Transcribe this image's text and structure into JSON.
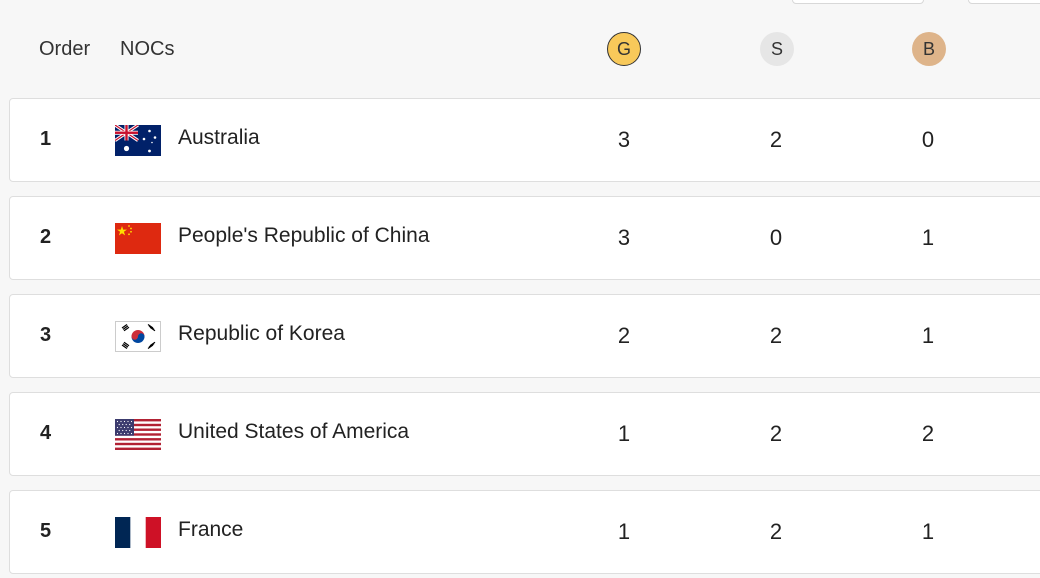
{
  "header": {
    "order_label": "Order",
    "nocs_label": "NOCs",
    "gold_label": "G",
    "silver_label": "S",
    "bronze_label": "B"
  },
  "colors": {
    "gold": "#f8c95a",
    "silver": "#e6e6e6",
    "bronze": "#deb48a"
  },
  "rows": [
    {
      "order": "1",
      "country": "Australia",
      "flag": "australia-flag-icon",
      "gold": "3",
      "silver": "2",
      "bronze": "0"
    },
    {
      "order": "2",
      "country": "People's Republic of China",
      "flag": "china-flag-icon",
      "gold": "3",
      "silver": "0",
      "bronze": "1"
    },
    {
      "order": "3",
      "country": "Republic of Korea",
      "flag": "korea-flag-icon",
      "gold": "2",
      "silver": "2",
      "bronze": "1"
    },
    {
      "order": "4",
      "country": "United States of America",
      "flag": "usa-flag-icon",
      "gold": "1",
      "silver": "2",
      "bronze": "2"
    },
    {
      "order": "5",
      "country": "France",
      "flag": "france-flag-icon",
      "gold": "1",
      "silver": "2",
      "bronze": "1"
    }
  ]
}
